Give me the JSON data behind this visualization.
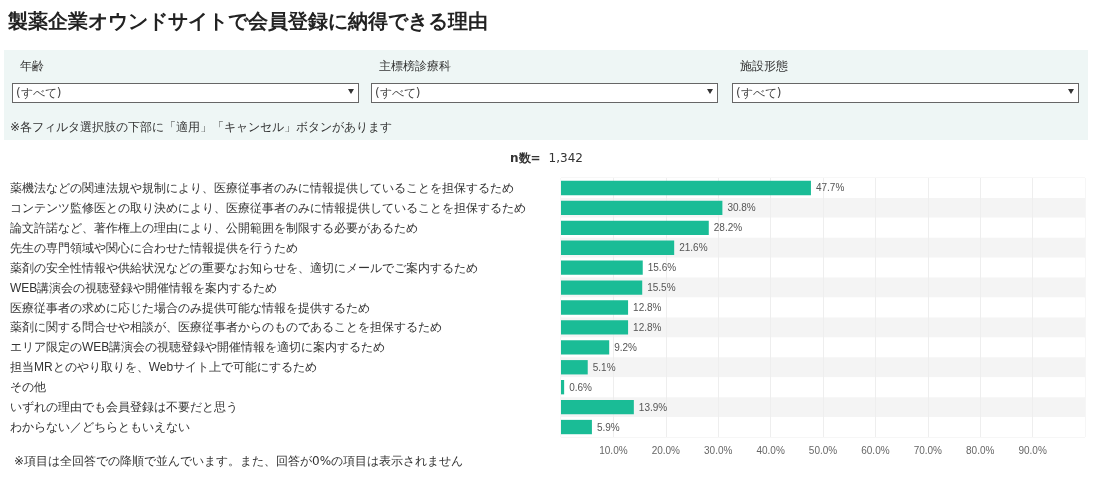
{
  "chart_data": {
    "type": "bar",
    "orientation": "horizontal",
    "title": "製薬企業オウンドサイトで会員登録に納得できる理由",
    "annotations": [
      "年齢",
      "主標榜診療科",
      "施設形態",
      "(すべて)",
      "(すべて)",
      "(すべて)",
      "※各フィルタ選択肢の下部に「適用」「キャンセル」ボタンがあります",
      "n数=",
      "1,342",
      "※項目は全回答での降順で並んでいます。また、回答が0%の項目は表示されません"
    ],
    "categories": [
      "薬機法などの関連法規や規制により、医療従事者のみに情報提供していることを担保するため",
      "コンテンツ監修医との取り決めにより、医療従事者のみに情報提供していることを担保するため",
      "論文許諾など、著作権上の理由により、公開範囲を制限する必要があるため",
      "先生の専門領域や関心に合わせた情報提供を行うため",
      "薬剤の安全性情報や供給状況などの重要なお知らせを、適切にメールでご案内するため",
      "WEB講演会の視聴登録や開催情報を案内するため",
      "医療従事者の求めに応じた場合のみ提供可能な情報を提供するため",
      "薬剤に関する問合せや相談が、医療従事者からのものであることを担保するため",
      "エリア限定のWEB講演会の視聴登録や開催情報を適切に案内するため",
      "担当MRとのやり取りを、Webサイト上で可能にするため",
      "その他",
      "いずれの理由でも会員登録は不要だと思う",
      "わからない／どちらともいえない"
    ],
    "values": [
      47.7,
      30.8,
      28.2,
      21.6,
      15.6,
      15.5,
      12.8,
      12.8,
      9.2,
      5.1,
      0.6,
      13.9,
      5.9
    ],
    "value_labels": [
      "47.7%",
      "30.8%",
      "28.2%",
      "21.6%",
      "15.6%",
      "15.5%",
      "12.8%",
      "12.8%",
      "9.2%",
      "5.1%",
      "0.6%",
      "13.9%",
      "5.9%"
    ],
    "color": "#1abc96",
    "xlim": [
      0,
      100
    ],
    "xticks": [
      {
        "value": 10,
        "label": "10.0%"
      },
      {
        "value": 20,
        "label": "20.0%"
      },
      {
        "value": 30,
        "label": "30.0%"
      },
      {
        "value": 40,
        "label": "40.0%"
      },
      {
        "value": 50,
        "label": "50.0%"
      },
      {
        "value": 60,
        "label": "60.0%"
      },
      {
        "value": 70,
        "label": "70.0%"
      },
      {
        "value": 80,
        "label": "80.0%"
      },
      {
        "value": 90,
        "label": "90.0%"
      }
    ],
    "grid": "x"
  }
}
